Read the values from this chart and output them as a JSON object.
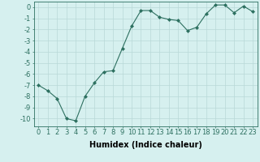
{
  "x": [
    0,
    1,
    2,
    3,
    4,
    5,
    6,
    7,
    8,
    9,
    10,
    11,
    12,
    13,
    14,
    15,
    16,
    17,
    18,
    19,
    20,
    21,
    22,
    23
  ],
  "y": [
    -7.0,
    -7.5,
    -8.2,
    -10.0,
    -10.2,
    -8.0,
    -6.8,
    -5.8,
    -5.7,
    -3.7,
    -1.7,
    -0.3,
    -0.3,
    -0.9,
    -1.1,
    -1.2,
    -2.1,
    -1.8,
    -0.6,
    0.2,
    0.2,
    -0.5,
    0.1,
    -0.4
  ],
  "line_color": "#2d7060",
  "marker": "D",
  "marker_size": 2,
  "bg_color": "#d6f0ef",
  "grid_color": "#b8d8d8",
  "xlabel": "Humidex (Indice chaleur)",
  "xlabel_fontsize": 7,
  "tick_fontsize": 6,
  "xlim": [
    -0.5,
    23.5
  ],
  "ylim": [
    -10.7,
    0.5
  ],
  "yticks": [
    0,
    -1,
    -2,
    -3,
    -4,
    -5,
    -6,
    -7,
    -8,
    -9,
    -10
  ],
  "xticks": [
    0,
    1,
    2,
    3,
    4,
    5,
    6,
    7,
    8,
    9,
    10,
    11,
    12,
    13,
    14,
    15,
    16,
    17,
    18,
    19,
    20,
    21,
    22,
    23
  ]
}
